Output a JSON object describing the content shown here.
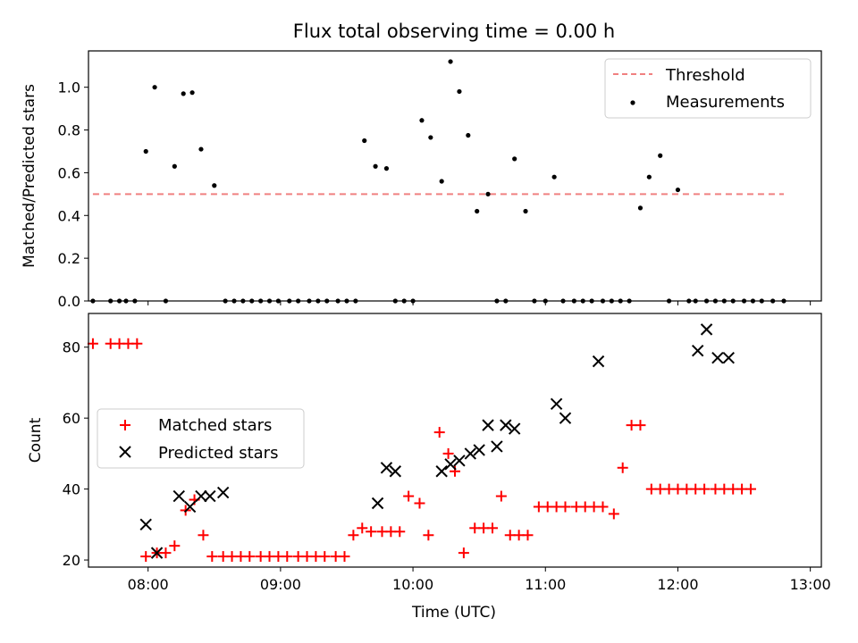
{
  "chart_data": [
    {
      "type": "scatter",
      "title": "Flux total observing time = 0.00 h",
      "ylabel": "Matched/Predicted stars",
      "xlabel": "",
      "ylim": [
        0,
        1.17
      ],
      "xlim": [
        "07:33",
        "13:05"
      ],
      "yticks": [
        0.0,
        0.2,
        0.4,
        0.6,
        0.8,
        1.0
      ],
      "ytick_labels": [
        "0.0",
        "0.2",
        "0.4",
        "0.6",
        "0.8",
        "1.0"
      ],
      "xticks": [
        "08:00",
        "09:00",
        "10:00",
        "11:00",
        "12:00",
        "13:00"
      ],
      "grid": false,
      "legend_position": "top-right",
      "threshold": {
        "name": "Threshold",
        "y": 0.5,
        "x_start": "07:35",
        "x_end": "12:48",
        "color": "#f08080",
        "style": "dashed"
      },
      "series": [
        {
          "name": "Measurements",
          "color": "#000000",
          "marker": "dot",
          "x": [
            "07:35",
            "07:43",
            "07:47",
            "07:50",
            "07:54",
            "07:59",
            "08:03",
            "08:08",
            "08:12",
            "08:16",
            "08:20",
            "08:24",
            "08:30",
            "08:35",
            "08:39",
            "08:43",
            "08:47",
            "08:51",
            "08:55",
            "08:59",
            "09:04",
            "09:08",
            "09:13",
            "09:17",
            "09:21",
            "09:26",
            "09:30",
            "09:34",
            "09:38",
            "09:43",
            "09:48",
            "09:52",
            "09:56",
            "10:00",
            "10:04",
            "10:08",
            "10:13",
            "10:17",
            "10:21",
            "10:25",
            "10:29",
            "10:34",
            "10:38",
            "10:42",
            "10:46",
            "10:51",
            "10:55",
            "11:00",
            "11:04",
            "11:08",
            "11:13",
            "11:17",
            "11:21",
            "11:26",
            "11:30",
            "11:34",
            "11:38",
            "11:43",
            "11:47",
            "11:52",
            "11:56",
            "12:00",
            "12:05",
            "12:08",
            "12:13",
            "12:17",
            "12:21",
            "12:25",
            "12:30",
            "12:34",
            "12:38",
            "12:43",
            "12:48"
          ],
          "y": [
            0.0,
            0.0,
            0.0,
            0.0,
            0.0,
            0.7,
            1.0,
            0.0,
            0.63,
            0.97,
            0.975,
            0.71,
            0.54,
            0.0,
            0.0,
            0.0,
            0.0,
            0.0,
            0.0,
            0.0,
            0.0,
            0.0,
            0.0,
            0.0,
            0.0,
            0.0,
            0.0,
            0.0,
            0.75,
            0.63,
            0.62,
            0.0,
            0.0,
            0.0,
            0.845,
            0.765,
            0.56,
            1.12,
            0.98,
            0.775,
            0.42,
            0.5,
            0.0,
            0.0,
            0.665,
            0.42,
            0.0,
            0.0,
            0.58,
            0.0,
            0.0,
            0.0,
            0.0,
            0.0,
            0.0,
            0.0,
            0.0,
            0.435,
            0.58,
            0.68,
            0.0,
            0.52,
            0.0,
            0.0,
            0.0,
            0.0,
            0.0,
            0.0,
            0.0,
            0.0,
            0.0,
            0.0,
            0.0
          ]
        }
      ]
    },
    {
      "type": "scatter",
      "title": "",
      "ylabel": "Count",
      "xlabel": "Time (UTC)",
      "ylim": [
        18.0,
        89.5
      ],
      "xlim": [
        "07:33",
        "13:05"
      ],
      "yticks": [
        20,
        40,
        60,
        80
      ],
      "ytick_labels": [
        "20",
        "40",
        "60",
        "80"
      ],
      "xticks": [
        "08:00",
        "09:00",
        "10:00",
        "11:00",
        "12:00",
        "13:00"
      ],
      "xtick_labels": [
        "08:00",
        "09:00",
        "10:00",
        "11:00",
        "12:00",
        "13:00"
      ],
      "grid": false,
      "legend_position": "center-left",
      "series": [
        {
          "name": "Matched stars",
          "color": "#ff0000",
          "marker": "plus",
          "x": [
            "07:35",
            "07:43",
            "07:47",
            "07:51",
            "07:55",
            "07:59",
            "08:04",
            "08:08",
            "08:12",
            "08:17",
            "08:21",
            "08:25",
            "08:29",
            "08:34",
            "08:38",
            "08:42",
            "08:46",
            "08:51",
            "08:55",
            "08:59",
            "09:03",
            "09:08",
            "09:12",
            "09:16",
            "09:20",
            "09:25",
            "09:29",
            "09:33",
            "09:37",
            "09:41",
            "09:46",
            "09:50",
            "09:54",
            "09:58",
            "10:03",
            "10:07",
            "10:12",
            "10:16",
            "10:19",
            "10:23",
            "10:28",
            "10:32",
            "10:36",
            "10:40",
            "10:44",
            "10:48",
            "10:52",
            "10:57",
            "11:01",
            "11:05",
            "11:09",
            "11:14",
            "11:18",
            "11:22",
            "11:26",
            "11:31",
            "11:35",
            "11:39",
            "11:43",
            "11:48",
            "11:52",
            "11:56",
            "12:00",
            "12:04",
            "12:08",
            "12:12",
            "12:17",
            "12:21",
            "12:25",
            "12:29",
            "12:33"
          ],
          "y": [
            81,
            81,
            81,
            81,
            81,
            21,
            22,
            22,
            24,
            34,
            37,
            27,
            21,
            21,
            21,
            21,
            21,
            21,
            21,
            21,
            21,
            21,
            21,
            21,
            21,
            21,
            21,
            27,
            29,
            28,
            28,
            28,
            28,
            38,
            36,
            27,
            56,
            50,
            45,
            22,
            29,
            29,
            29,
            38,
            27,
            27,
            27,
            35,
            35,
            35,
            35,
            35,
            35,
            35,
            35,
            33,
            46,
            58,
            58,
            40,
            40,
            40,
            40,
            40,
            40,
            40,
            40,
            40,
            40,
            40,
            40
          ]
        },
        {
          "name": "Predicted stars",
          "color": "#000000",
          "marker": "x",
          "x": [
            "07:59",
            "08:04",
            "08:14",
            "08:19",
            "08:24",
            "08:28",
            "08:34",
            "09:44",
            "09:48",
            "09:52",
            "10:13",
            "10:17",
            "10:21",
            "10:26",
            "10:30",
            "10:34",
            "10:38",
            "10:42",
            "10:46",
            "11:05",
            "11:09",
            "11:24",
            "12:09",
            "12:13",
            "12:18",
            "12:23"
          ],
          "y": [
            30,
            22,
            38,
            35,
            38,
            38,
            39,
            36,
            46,
            45,
            45,
            47,
            48,
            50,
            51,
            58,
            52,
            58,
            57,
            64,
            60,
            76,
            79,
            85,
            77,
            77
          ]
        }
      ]
    }
  ]
}
